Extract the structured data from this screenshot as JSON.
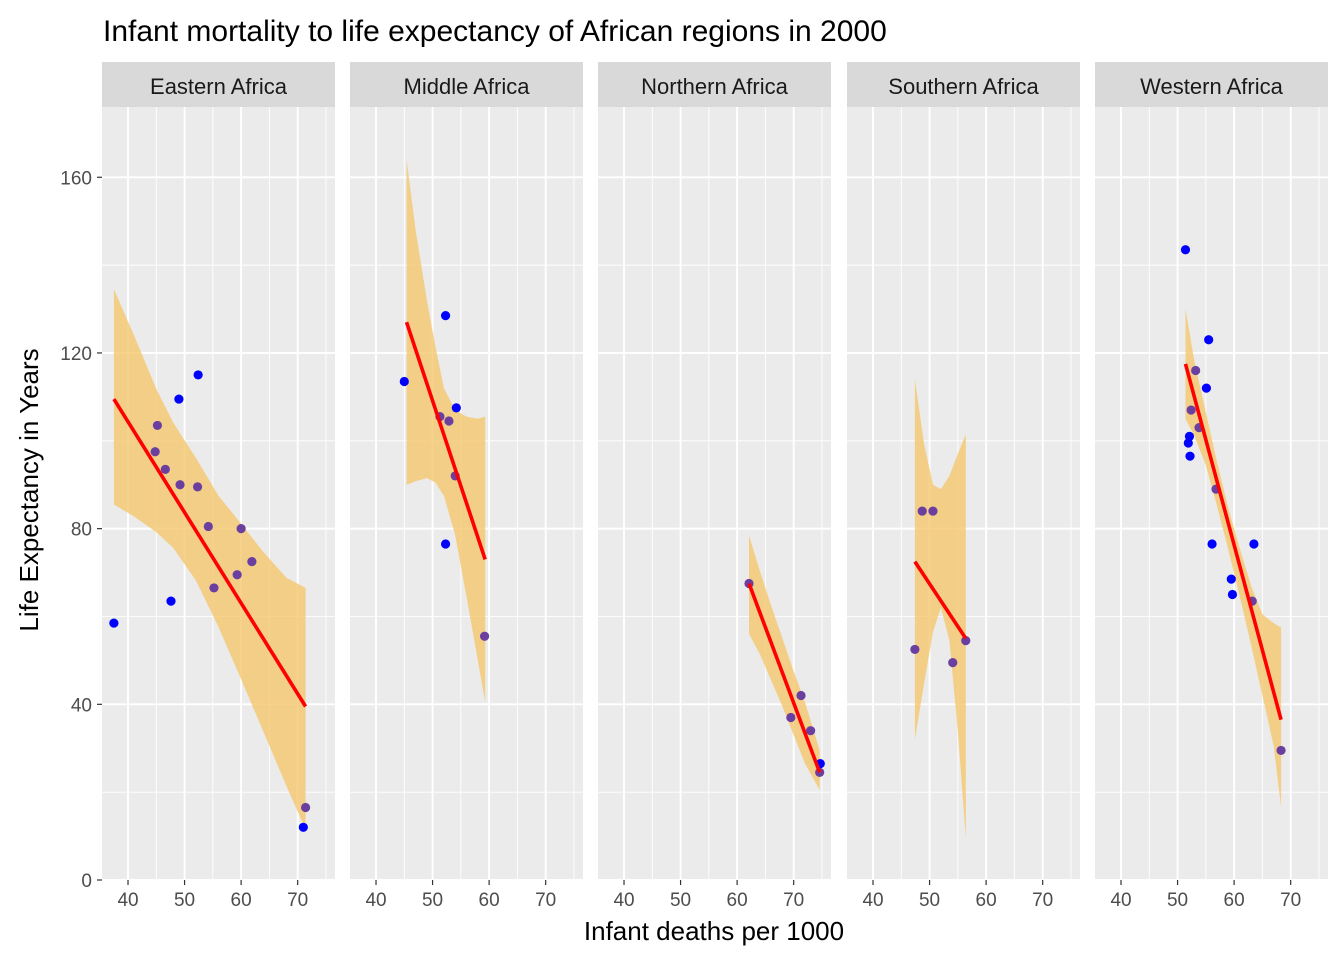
{
  "chart_data": {
    "type": "scatter",
    "title": "Infant mortality to life expectancy of African regions in 2000",
    "xlabel": "Infant deaths per 1000",
    "ylabel": "Life Expectancy in Years",
    "xlim": [
      35.4,
      76.6
    ],
    "ylim": [
      0,
      176
    ],
    "x_ticks": [
      40,
      50,
      60,
      70
    ],
    "y_ticks": [
      0,
      40,
      80,
      120,
      160
    ],
    "grid": true,
    "colors": {
      "panel_bg": "#EBEBEB",
      "strip_bg": "#D9D9D9",
      "grid": "#FFFFFF",
      "point": "#0000FF",
      "overlap_point": "#6A3FA0",
      "fit_line": "#FF0000",
      "ribbon": "#F5C76E"
    },
    "facets": [
      {
        "label": "Eastern Africa",
        "points": [
          [
            37.5,
            58.5
          ],
          [
            44.8,
            97.5
          ],
          [
            45.2,
            103.5
          ],
          [
            46.6,
            93.5
          ],
          [
            47.6,
            63.5
          ],
          [
            49.0,
            109.5
          ],
          [
            49.2,
            90.0
          ],
          [
            52.4,
            115.0
          ],
          [
            52.3,
            89.5
          ],
          [
            54.2,
            80.5
          ],
          [
            55.2,
            66.5
          ],
          [
            59.3,
            69.5
          ],
          [
            60.0,
            80.0
          ],
          [
            61.9,
            72.5
          ],
          [
            71.0,
            12.0
          ],
          [
            71.4,
            16.5
          ]
        ],
        "fit": [
          [
            37.5,
            109.5
          ],
          [
            71.4,
            39.5
          ]
        ],
        "band": [
          [
            37.5,
            85.5,
            134.5
          ],
          [
            41.0,
            82.8,
            124.2
          ],
          [
            45.0,
            79.2,
            111.8
          ],
          [
            48.0,
            75.6,
            104.1
          ],
          [
            52.0,
            68.2,
            96.1
          ],
          [
            56.0,
            57.6,
            87.5
          ],
          [
            60.0,
            45.7,
            81.1
          ],
          [
            64.0,
            33.6,
            74.6
          ],
          [
            68.0,
            21.4,
            68.8
          ],
          [
            71.4,
            11.5,
            66.5
          ]
        ]
      },
      {
        "label": "Middle Africa",
        "points": [
          [
            45.0,
            113.5
          ],
          [
            51.3,
            105.5
          ],
          [
            52.3,
            128.5
          ],
          [
            52.3,
            76.5
          ],
          [
            52.9,
            104.5
          ],
          [
            54.0,
            92.0
          ],
          [
            54.2,
            107.5
          ],
          [
            59.2,
            55.5
          ]
        ],
        "fit": [
          [
            45.4,
            127.0
          ],
          [
            59.3,
            73.0
          ]
        ],
        "band": [
          [
            45.4,
            90.0,
            164.0
          ],
          [
            47.0,
            90.8,
            148.0
          ],
          [
            49.0,
            91.5,
            132.0
          ],
          [
            50.5,
            90.5,
            121.5
          ],
          [
            52.0,
            87.5,
            112.0
          ],
          [
            54.0,
            78.5,
            107.0
          ],
          [
            56.0,
            64.5,
            105.5
          ],
          [
            58.0,
            50.0,
            105.0
          ],
          [
            59.3,
            40.5,
            105.5
          ]
        ]
      },
      {
        "label": "Northern Africa",
        "points": [
          [
            62.1,
            67.5
          ],
          [
            69.5,
            37.0
          ],
          [
            71.3,
            42.0
          ],
          [
            73.0,
            34.0
          ],
          [
            74.6,
            24.5
          ],
          [
            74.7,
            26.5
          ]
        ],
        "fit": [
          [
            62.1,
            67.5
          ],
          [
            74.6,
            24.5
          ]
        ],
        "band": [
          [
            62.1,
            56.0,
            78.5
          ],
          [
            64.0,
            51.5,
            70.5
          ],
          [
            66.0,
            45.5,
            62.5
          ],
          [
            68.0,
            39.5,
            55.0
          ],
          [
            70.0,
            33.0,
            47.5
          ],
          [
            72.0,
            26.5,
            40.5
          ],
          [
            74.6,
            20.5,
            29.5
          ]
        ]
      },
      {
        "label": "Southern Africa",
        "points": [
          [
            47.4,
            52.5
          ],
          [
            48.7,
            84.0
          ],
          [
            50.6,
            84.0
          ],
          [
            54.1,
            49.5
          ],
          [
            56.4,
            54.5
          ]
        ],
        "fit": [
          [
            47.4,
            72.5
          ],
          [
            56.4,
            55.0
          ]
        ],
        "band": [
          [
            47.4,
            32.0,
            114.0
          ],
          [
            49.0,
            44.5,
            99.5
          ],
          [
            50.6,
            56.5,
            90.0
          ],
          [
            52.0,
            62.0,
            89.0
          ],
          [
            53.5,
            54.5,
            92.0
          ],
          [
            55.0,
            34.0,
            97.0
          ],
          [
            56.4,
            9.5,
            101.5
          ]
        ]
      },
      {
        "label": "Western Africa",
        "points": [
          [
            51.4,
            143.5
          ],
          [
            51.9,
            99.5
          ],
          [
            52.1,
            101.0
          ],
          [
            52.2,
            96.5
          ],
          [
            52.4,
            107.0
          ],
          [
            53.2,
            116.0
          ],
          [
            53.8,
            103.0
          ],
          [
            55.1,
            112.0
          ],
          [
            55.5,
            123.0
          ],
          [
            56.1,
            76.5
          ],
          [
            56.8,
            89.0
          ],
          [
            59.5,
            68.5
          ],
          [
            59.7,
            65.0
          ],
          [
            63.2,
            63.5
          ],
          [
            63.5,
            76.5
          ],
          [
            68.3,
            29.5
          ]
        ],
        "fit": [
          [
            51.4,
            117.5
          ],
          [
            68.3,
            36.5
          ]
        ],
        "band": [
          [
            51.4,
            105.0,
            130.0
          ],
          [
            53.0,
            101.0,
            118.0
          ],
          [
            55.0,
            94.5,
            106.5
          ],
          [
            57.0,
            85.0,
            95.0
          ],
          [
            59.0,
            75.0,
            84.5
          ],
          [
            61.0,
            64.5,
            75.5
          ],
          [
            63.0,
            53.5,
            67.0
          ],
          [
            65.0,
            42.0,
            60.5
          ],
          [
            67.0,
            30.5,
            58.5
          ],
          [
            68.3,
            16.5,
            57.5
          ]
        ]
      }
    ]
  }
}
